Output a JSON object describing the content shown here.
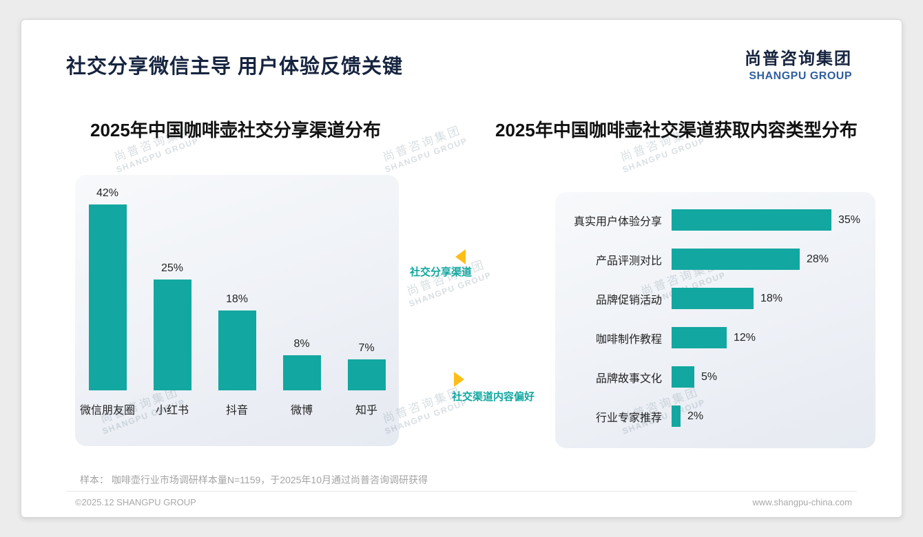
{
  "page": {
    "title": "社交分享微信主导 用户体验反馈关键",
    "logo": {
      "cn": "尚普咨询集团",
      "en": "SHANGPU GROUP"
    },
    "watermark": {
      "cn": "尚普咨询集团",
      "en": "SHANGPU GROUP"
    },
    "annotations": {
      "left_label": "社交分享渠道",
      "right_label": "社交渠道内容偏好"
    },
    "footer": {
      "sample_note": "样本： 咖啡壶行业市场调研样本量N=1159，于2025年10月通过尚普咨询调研获得",
      "copyright": "©2025.12 SHANGPU GROUP",
      "website": "www.shangpu-china.com"
    }
  },
  "colors": {
    "accent_teal": "#12A7A0",
    "highlight_yellow": "#FDBE17",
    "title_navy": "#16243F",
    "logo_blue": "#2F5F9E"
  },
  "chart_data": [
    {
      "type": "bar",
      "orientation": "vertical",
      "title": "2025年中国咖啡壶社交分享渠道分布",
      "categories": [
        "微信朋友圈",
        "小红书",
        "抖音",
        "微博",
        "知乎"
      ],
      "values": [
        42,
        25,
        18,
        8,
        7
      ],
      "unit": "%",
      "ylim": [
        0,
        45
      ],
      "grid": false,
      "bar_color": "#12A7A0",
      "value_labels": "above bars"
    },
    {
      "type": "bar",
      "orientation": "horizontal",
      "title": "2025年中国咖啡壶社交渠道获取内容类型分布",
      "categories": [
        "真实用户体验分享",
        "产品评测对比",
        "品牌促销活动",
        "咖啡制作教程",
        "品牌故事文化",
        "行业专家推荐"
      ],
      "values": [
        35,
        28,
        18,
        12,
        5,
        2
      ],
      "unit": "%",
      "xlim": [
        0,
        40
      ],
      "grid": false,
      "bar_color": "#12A7A0",
      "value_labels": "right of bars"
    }
  ]
}
